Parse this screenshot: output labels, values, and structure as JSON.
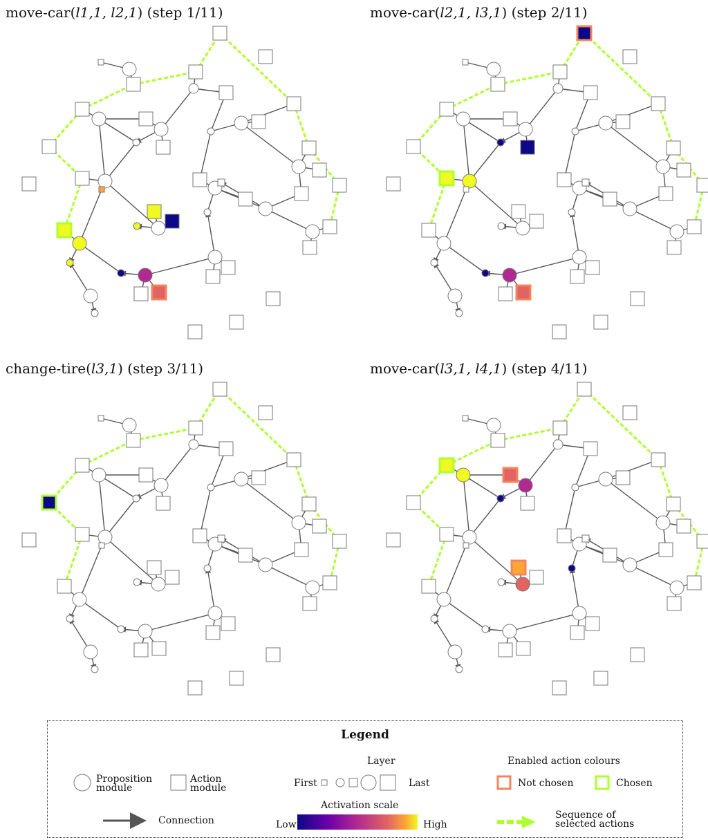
{
  "panels": [
    {
      "title_prefix": "move-car(",
      "title_args": "l1,1, l2,1",
      "title_suffix": ") (step 1/11)"
    },
    {
      "title_prefix": "move-car(",
      "title_args": "l2,1, l3,1",
      "title_suffix": ") (step 2/11)"
    },
    {
      "title_prefix": "change-tire(",
      "title_args": "l3,1",
      "title_suffix": ") (step 3/11)"
    },
    {
      "title_prefix": "move-car(",
      "title_args": "l3,1, l4,1",
      "title_suffix": ") (step 4/11)"
    }
  ],
  "legend": {
    "title": "Legend",
    "proposition_label": "Proposition module",
    "action_label": "Action module",
    "connection_label": "Connection",
    "layer_title": "Layer",
    "layer_first": "First",
    "layer_last": "Last",
    "activation_title": "Activation scale",
    "activation_low": "Low",
    "activation_high": "High",
    "enabled_title": "Enabled action colours",
    "not_chosen_label": "Not chosen",
    "chosen_label": "Chosen",
    "sequence_label": "Sequence of selected actions"
  },
  "colors": {
    "edge": "#555555",
    "sequence": "#adff2f",
    "not_chosen": "#f4845f",
    "chosen": "#adff2f",
    "activation_low": "#0d0887",
    "activation_high": "#f0f921"
  }
}
